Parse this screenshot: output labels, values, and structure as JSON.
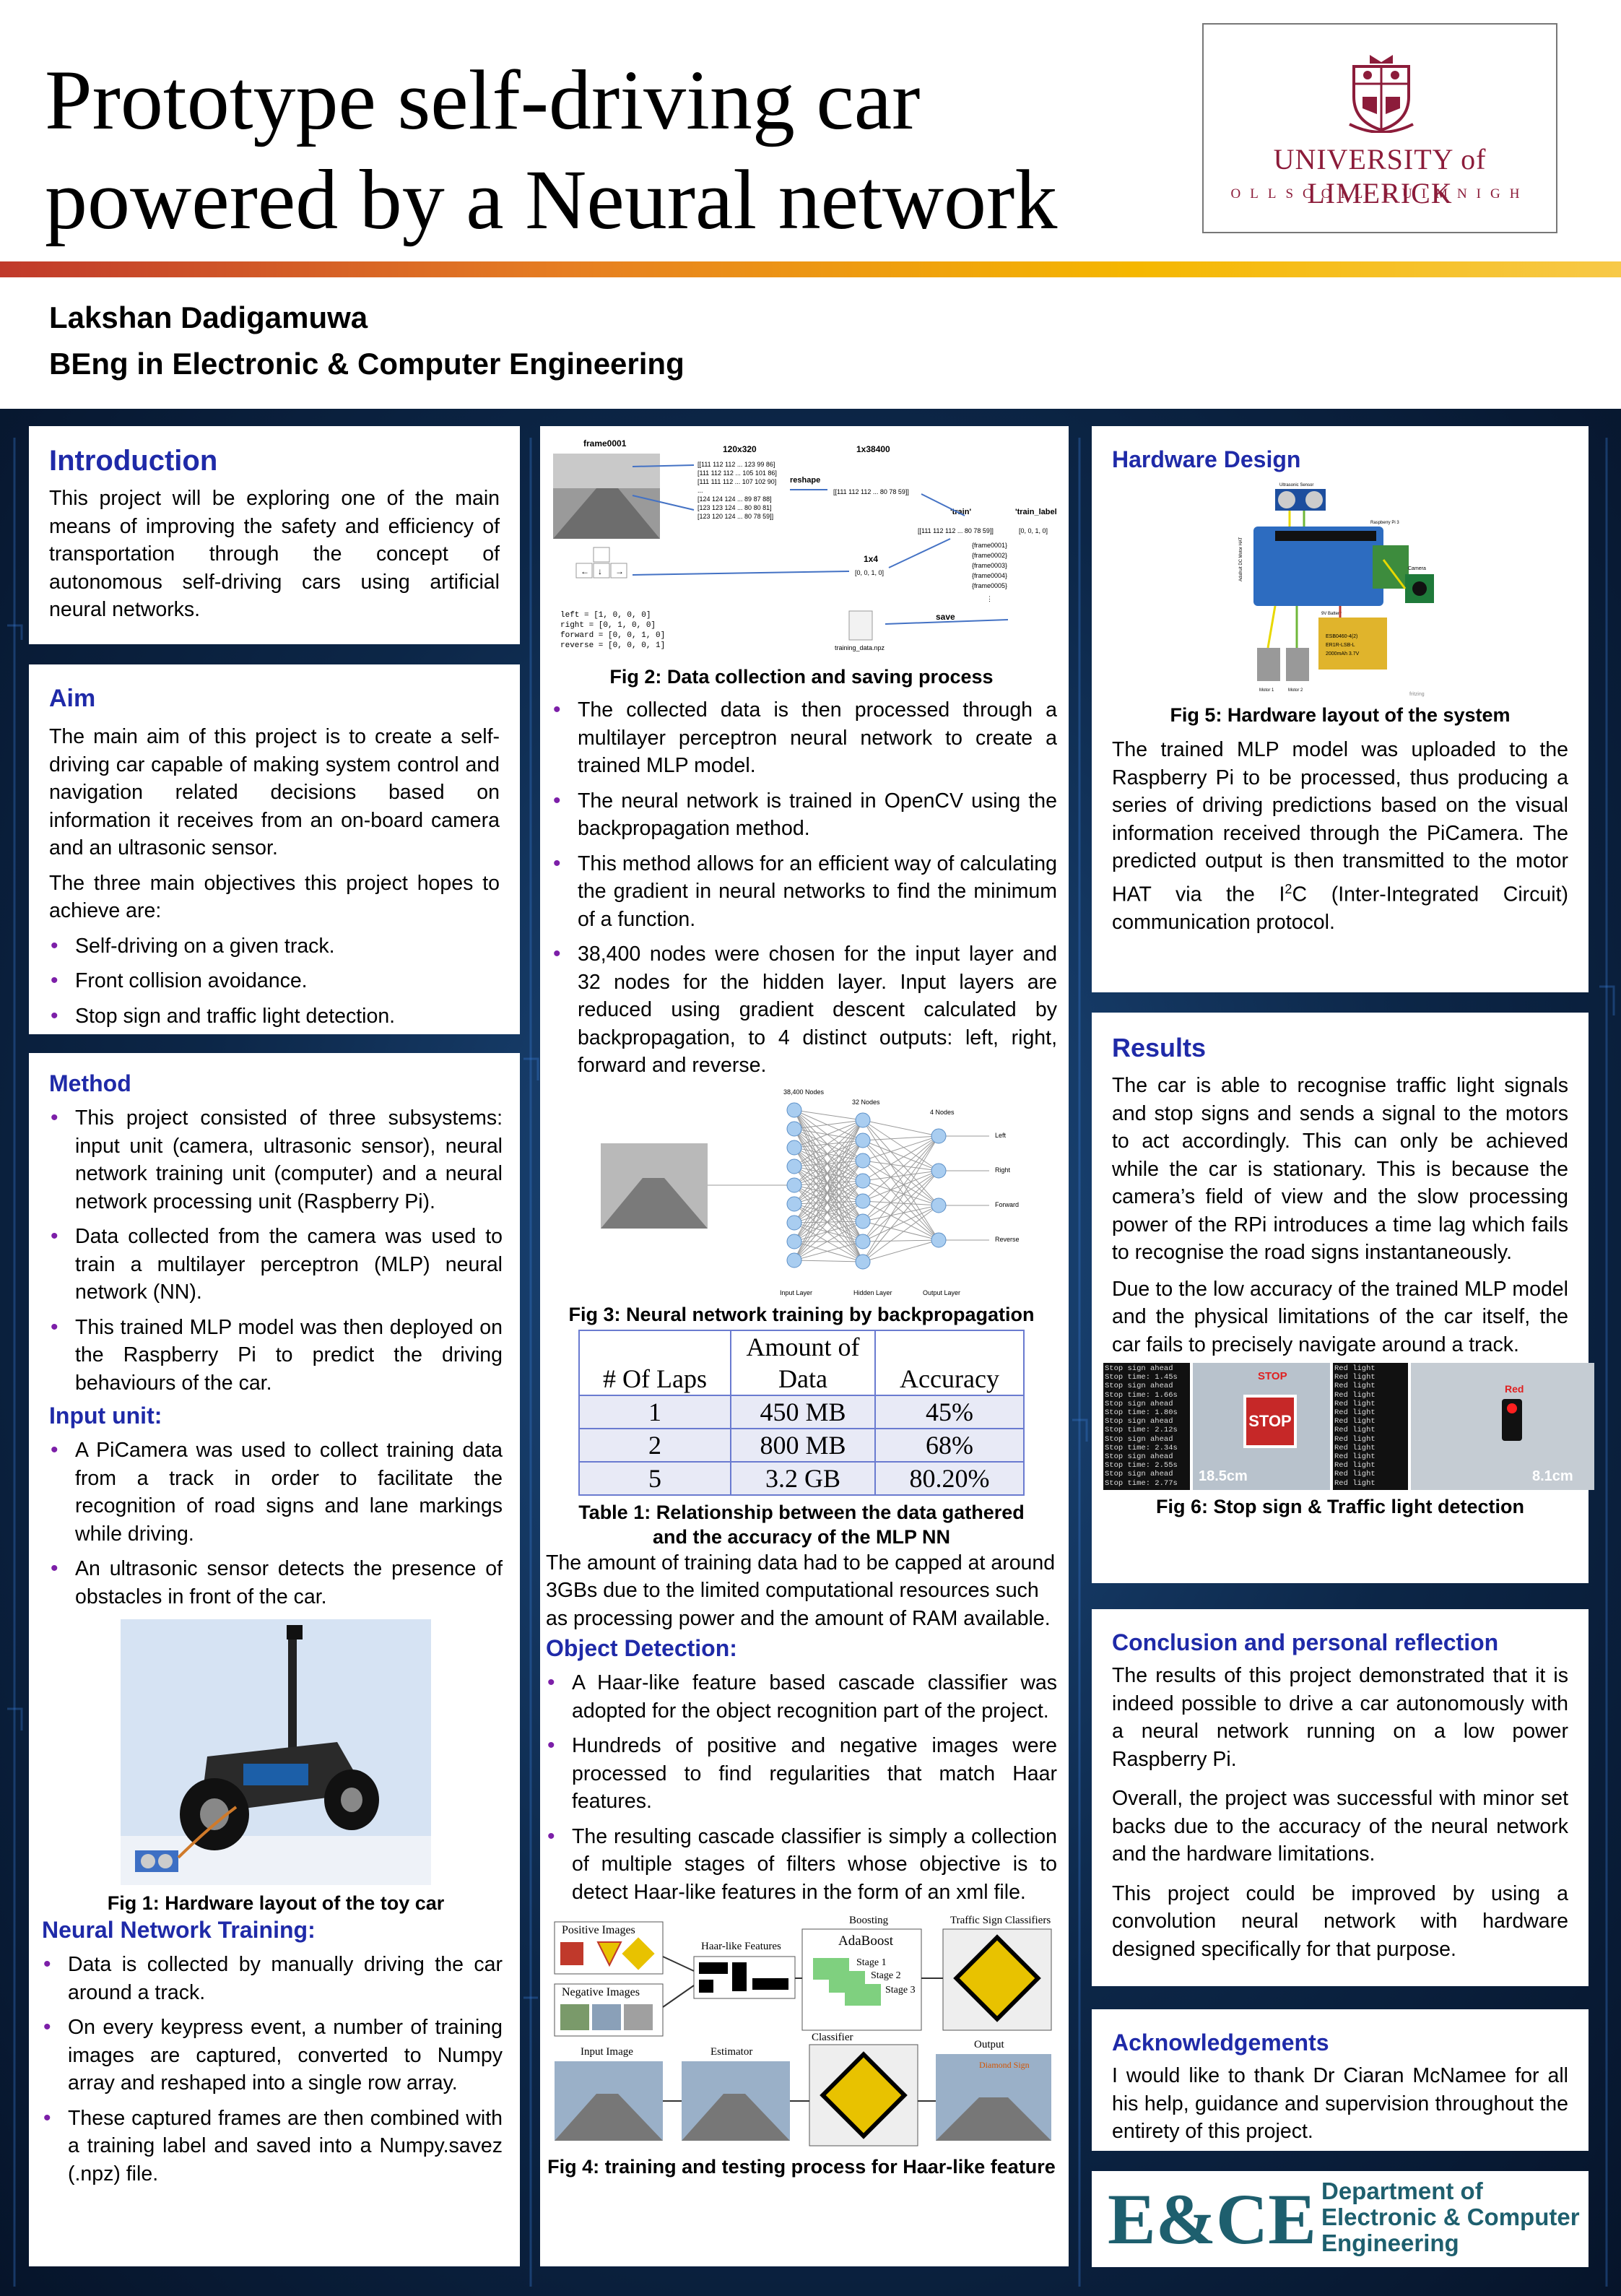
{
  "header": {
    "title_line1": "Prototype self-driving car",
    "title_line2": "powered by a Neural network",
    "logo_name": "UNIVERSITY of LIMERICK",
    "logo_sub": "OLLSCOIL LUIMNIGH",
    "author": "Lakshan Dadigamuwa",
    "degree": "BEng in Electronic & Computer Engineering"
  },
  "introduction": {
    "heading": "Introduction",
    "text": "This project will be exploring one of the main means of improving the safety and efficiency of transportation through the concept of autonomous self-driving cars using artificial neural networks."
  },
  "aim": {
    "heading": "Aim",
    "text1": "The main aim of this project is to create a self-driving car capable of making system control and navigation related decisions based on information it receives from an on-board camera and an ultrasonic sensor.",
    "text2": "The three main objectives this project hopes to achieve are:",
    "items": [
      "Self-driving on a given track.",
      "Front collision avoidance.",
      "Stop sign and traffic light detection."
    ]
  },
  "method": {
    "heading": "Method",
    "items": [
      "This project consisted of three subsystems: input unit (camera, ultrasonic sensor), neural network training unit (computer) and a neural network processing unit (Raspberry Pi).",
      "Data collected from the camera was used to train a multilayer perceptron (MLP) neural network (NN).",
      "This trained MLP model was then deployed on the Raspberry Pi to predict the driving behaviours of the car."
    ],
    "input_heading": "Input unit:",
    "input_items": [
      "A PiCamera was used to collect training data from a track in order to facilitate the recognition of road signs and lane markings while driving.",
      "An ultrasonic sensor detects the presence of obstacles in front of the car."
    ],
    "fig1_caption": "Fig 1: Hardware layout of the toy car",
    "nn_heading": "Neural Network Training:",
    "nn_items": [
      "Data is collected by manually driving the car around a track.",
      "On every keypress event, a number of training images are captured, converted to Numpy array and reshaped into a single row array.",
      "These captured frames are then combined with a training label and saved into a Numpy.savez (.npz) file."
    ]
  },
  "middle": {
    "fig2": {
      "frame_label": "frame0001",
      "dims_a": "120x320",
      "dims_b": "1x38400",
      "reshape": "reshape",
      "matrix_rows": [
        "[[111 112 112 ... 123 99 86]",
        " [111 112 112 ... 105 101 86]",
        " [111 111 112 ... 107 102 90]",
        " ...",
        " [124 124 124 ... 89 87 88]",
        " [123 123 124 ... 80 80 81]",
        " [123 120 124 ... 80 78 59]]"
      ],
      "row_array": "[[111 112 112 ... 80 78 59]]",
      "train_label": "'train'",
      "train_label2": "'train_label'",
      "train_row": "[[111 112 112 ... 80 78 59]]",
      "label_vec": "[0, 0, 1, 0]",
      "frames": [
        "{frame0001}",
        "{frame0002}",
        "{frame0003}",
        "{frame0004}",
        "{frame0005}",
        "⋮"
      ],
      "dims_c": "1x4",
      "vec_c": "[0, 0, 1, 0]",
      "save": "save",
      "file": "training_data.npz",
      "keys": [
        "left    = [1, 0, 0, 0]",
        "right   = [0, 1, 0, 0]",
        "forward = [0, 0, 1, 0]",
        "reverse = [0, 0, 0, 1]"
      ],
      "caption": "Fig 2: Data collection and saving process"
    },
    "items1": [
      "The collected data is then processed through a multilayer perceptron neural network to create a trained MLP model.",
      "The neural network is trained in OpenCV using the backpropagation method.",
      "This method allows for an efficient way of calculating the gradient in neural networks to find the minimum of a function.",
      "38,400 nodes were chosen for the input layer and 32 nodes for the hidden layer. Input layers are reduced using gradient descent calculated by backpropagation, to 4 distinct outputs: left, right, forward and reverse."
    ],
    "fig3": {
      "input_nodes": "38,400 Nodes",
      "hidden_nodes": "32 Nodes",
      "output_nodes": "4 Nodes",
      "outputs": [
        "Left",
        "Right",
        "Forward",
        "Reverse"
      ],
      "layers": [
        "Input Layer",
        "Hidden Layer",
        "Output Layer"
      ],
      "caption": "Fig 3: Neural network training by backpropagation"
    },
    "table": {
      "headers": [
        "# Of Laps",
        "Amount of Data",
        "Accuracy"
      ],
      "rows": [
        [
          "1",
          "450 MB",
          "45%"
        ],
        [
          "2",
          "800 MB",
          "68%"
        ],
        [
          "5",
          "3.2 GB",
          "80.20%"
        ]
      ],
      "caption": "Table 1: Relationship between the data gathered and the accuracy of the MLP NN"
    },
    "text_capped": "The amount of training data had to be capped at around 3GBs due to the limited computational resources such as processing power and the amount of RAM available.",
    "od_heading": "Object Detection:",
    "od_items": [
      "A Haar-like feature based cascade classifier was adopted for the object recognition part of the project.",
      "Hundreds of positive and negative images were processed to find regularities that match Haar features.",
      "The resulting cascade classifier is simply a collection of multiple stages of filters whose objective is to detect Haar-like features in the form of an xml file."
    ],
    "fig4": {
      "pos": "Positive Images",
      "neg": "Negative Images",
      "haar": "Haar-like Features",
      "boosting": "Boosting",
      "adaboost": "AdaBoost",
      "stages": [
        "Stage 1",
        "Stage 2",
        "Stage 3"
      ],
      "tsc": "Traffic Sign Classifiers",
      "input": "Input Image",
      "estimator": "Estimator",
      "classifier": "Classifier",
      "output": "Output",
      "detected": "Diamond Sign",
      "caption": "Fig 4: training and testing process for Haar-like feature"
    }
  },
  "right": {
    "hw_heading": "Hardware Design",
    "fig5": {
      "ultrasonic": "Ultrasonic Sensor",
      "rpi": "Raspberry Pi 3",
      "hat": "Adafruit DC Motor HAT",
      "camera": "Camera",
      "battery": "9V Battery",
      "lipo": [
        "ESB0460-4(2)",
        "ER1R-LSB-L",
        "2000mAh 3.7V"
      ],
      "motor1": "Motor 1",
      "motor2": "Motor 2",
      "fritzing": "fritzing",
      "caption": "Fig 5: Hardware layout of the system"
    },
    "hw_text_a": "The trained MLP model was uploaded to the Raspberry Pi to be processed, thus producing a series of driving predictions based on the visual information received through the PiCamera. The predicted output is then transmitted to the motor HAT via the I",
    "hw_sup": "2",
    "hw_text_b": "C (Inter-Integrated Circuit) communication protocol.",
    "res_heading": "Results",
    "res_text1": "The car is able to recognise traffic light signals and stop signs and sends a signal to the motors to act accordingly. This can only be achieved while the car is stationary. This is because the camera’s field of view and the slow processing power of the RPi introduces a time lag which fails to recognise the road signs instantaneously.",
    "res_text2": "Due to the low accuracy of the trained MLP model and the physical limitations of the car itself, the car fails to precisely navigate around a track.",
    "fig6": {
      "term1": [
        "Stop sign ahead",
        "Stop time: 1.45s",
        "Stop sign ahead",
        "Stop time: 1.66s",
        "Stop sign ahead",
        "Stop time: 1.80s",
        "Stop sign ahead",
        "Stop time: 2.12s",
        "Stop sign ahead",
        "Stop time: 2.34s",
        "Stop sign ahead",
        "Stop time: 2.55s",
        "Stop sign ahead",
        "Stop time: 2.77s"
      ],
      "stop_label": "STOP",
      "sign_text": "STOP",
      "dist1": "18.5cm",
      "term2": [
        "Red light",
        "Red light",
        "Red light",
        "Red light",
        "Red light",
        "Red light",
        "Red light",
        "Red light",
        "Red light",
        "Red light",
        "Red light",
        "Red light",
        "Red light",
        "Red light"
      ],
      "red_label": "Red",
      "dist2": "8.1cm",
      "caption": "Fig 6: Stop sign & Traffic light detection"
    },
    "conc_heading": "Conclusion and personal reflection",
    "conc_text1": "The results of this project demonstrated that it is indeed possible to drive a car autonomously with a neural network running on a low power Raspberry Pi.",
    "conc_text2": "Overall, the project was successful with minor set backs due to the accuracy of the neural network and the hardware limitations.",
    "conc_text3": "This project could be improved by using a convolution neural network with hardware designed specifically for that purpose.",
    "ack_heading": "Acknowledgements",
    "ack_text": "I would like to thank Dr Ciaran McNamee for all his help, guidance and supervision throughout the entirety of this project.",
    "ece_mark": "E&CE",
    "ece_line1": "Department of",
    "ece_line2": "Electronic & Computer",
    "ece_line3": "Engineering"
  },
  "colors": {
    "heading": "#1f2aa8",
    "bullet": "#7c1fa8",
    "logo": "#8c1c3a",
    "background": "#0c2647"
  }
}
